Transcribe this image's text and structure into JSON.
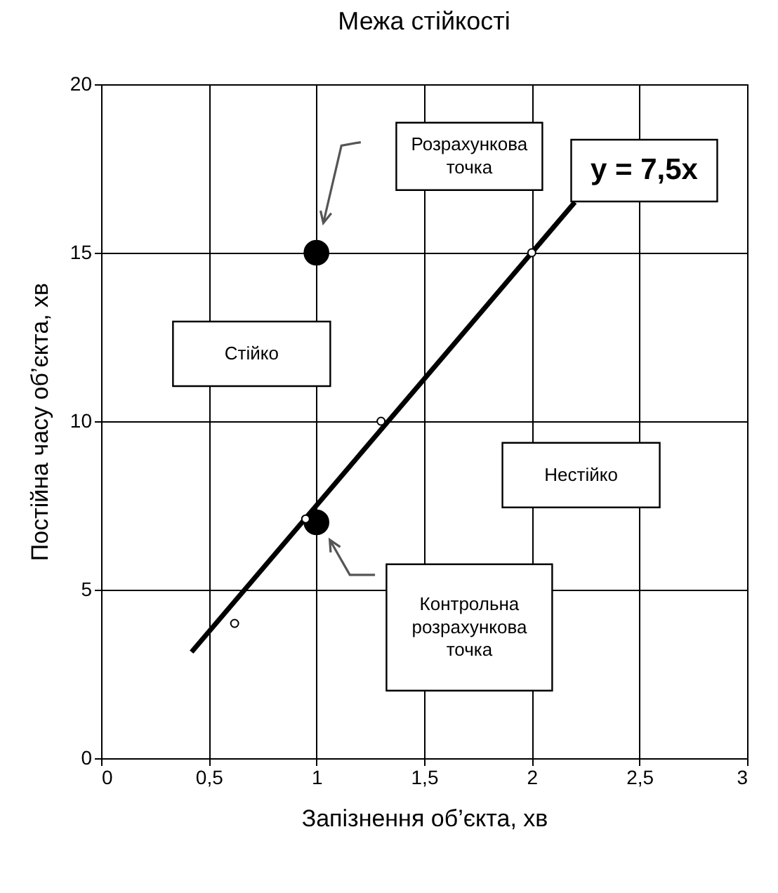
{
  "chart_data": {
    "type": "scatter",
    "title": "Межа стійкості",
    "xlabel": "Запізнення об’єкта, хв",
    "ylabel": "Постійна часу об’єкта, хв",
    "xlim": [
      0,
      3
    ],
    "ylim": [
      0,
      20
    ],
    "xticks": [
      0,
      {
        "value": 0.5,
        "label": "0,5"
      },
      1,
      {
        "value": 1.5,
        "label": "1,5"
      },
      2,
      {
        "value": 2.5,
        "label": "2,5"
      },
      3
    ],
    "yticks": [
      0,
      5,
      10,
      15,
      20
    ],
    "grid": true,
    "marker": "circle",
    "series": [
      {
        "type": "line",
        "color": "#000000",
        "marker": "none",
        "x": [
          0.42,
          2.2
        ],
        "values": [
          3.15,
          16.5
        ]
      },
      {
        "color": "#ffffff",
        "x": [
          0.62,
          0.95,
          1.3,
          2
        ],
        "values": [
          4,
          7.1,
          10,
          15
        ]
      },
      {
        "color": "#000000",
        "x": [
          1,
          1
        ],
        "values": [
          15,
          7
        ]
      }
    ],
    "annotations": [
      "Розрахункова\nточка",
      "Контрольна\nрозрахункова\nточка",
      {
        "text": "y = 7,5x",
        "x": 2.2,
        "y": 16.5
      },
      "Стійко",
      "Нестійко"
    ]
  }
}
